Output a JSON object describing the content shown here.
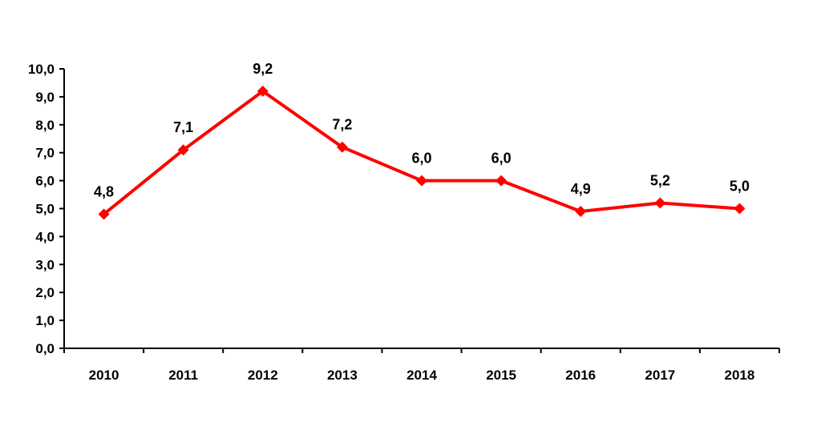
{
  "chart_data": {
    "type": "line",
    "categories": [
      "2010",
      "2011",
      "2012",
      "2013",
      "2014",
      "2015",
      "2016",
      "2017",
      "2018"
    ],
    "values": [
      4.8,
      7.1,
      9.2,
      7.2,
      6.0,
      6.0,
      4.9,
      5.2,
      5.0
    ],
    "value_labels": [
      "4,8",
      "7,1",
      "9,2",
      "7,2",
      "6,0",
      "6,0",
      "4,9",
      "5,2",
      "5,0"
    ],
    "y_ticks": [
      0,
      1,
      2,
      3,
      4,
      5,
      6,
      7,
      8,
      9,
      10
    ],
    "y_tick_labels": [
      "0,0",
      "1,0",
      "2,0",
      "3,0",
      "4,0",
      "5,0",
      "6,0",
      "7,0",
      "8,0",
      "9,0",
      "10,0"
    ],
    "ylim": [
      0,
      10
    ],
    "grid": false,
    "legend": false,
    "line_color": "#ff0000",
    "marker": "diamond"
  }
}
